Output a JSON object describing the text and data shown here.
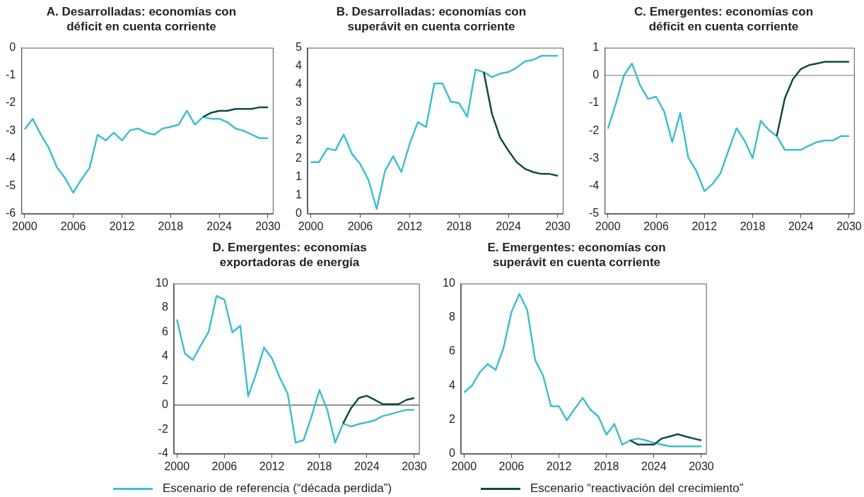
{
  "chart_data": [
    {
      "type": "line",
      "title": "A. Desarrolladas: economías con déficit en cuenta corriente",
      "x": [
        2000,
        2001,
        2002,
        2003,
        2004,
        2005,
        2006,
        2007,
        2008,
        2009,
        2010,
        2011,
        2012,
        2013,
        2014,
        2015,
        2016,
        2017,
        2018,
        2019,
        2020,
        2021,
        2022,
        2023,
        2024,
        2025,
        2026,
        2027,
        2028,
        2029,
        2030
      ],
      "xlim": [
        1999.6,
        2030.6
      ],
      "xticks": [
        2000,
        2006,
        2012,
        2018,
        2024,
        2030
      ],
      "ylim": [
        -6,
        0
      ],
      "yticks": [
        -6,
        -5,
        -4,
        -3,
        -2,
        -1,
        0
      ],
      "legend": "bottom",
      "grid": false,
      "series": [
        {
          "name": "Escenario de referencia (“década perdida”)",
          "color": "#3dbfcf",
          "values": [
            -2.95,
            -2.57,
            -3.14,
            -3.63,
            -4.33,
            -4.72,
            -5.24,
            -4.76,
            -4.35,
            -3.14,
            -3.35,
            -3.07,
            -3.35,
            -2.98,
            -2.92,
            -3.07,
            -3.14,
            -2.92,
            -2.86,
            -2.78,
            -2.28,
            -2.78,
            -2.5,
            -2.57,
            -2.57,
            -2.69,
            -2.92,
            -3.0,
            -3.14,
            -3.27,
            -3.27
          ]
        },
        {
          "name": "Escenario “reactivación del crecimiento”",
          "color": "#0f4a4a",
          "values": [
            null,
            null,
            null,
            null,
            null,
            null,
            null,
            null,
            null,
            null,
            null,
            null,
            null,
            null,
            null,
            null,
            null,
            null,
            null,
            null,
            null,
            null,
            -2.5,
            -2.35,
            -2.28,
            -2.28,
            -2.21,
            -2.21,
            -2.21,
            -2.15,
            -2.15
          ]
        }
      ]
    },
    {
      "type": "line",
      "title": "B. Desarrolladas: economías con superávit en cuenta corriente",
      "x": [
        2000,
        2001,
        2002,
        2003,
        2004,
        2005,
        2006,
        2007,
        2008,
        2009,
        2010,
        2011,
        2012,
        2013,
        2014,
        2015,
        2016,
        2017,
        2018,
        2019,
        2020,
        2021,
        2022,
        2023,
        2024,
        2025,
        2026,
        2027,
        2028,
        2029,
        2030
      ],
      "xlim": [
        1999.6,
        2030.6
      ],
      "xticks": [
        2000,
        2006,
        2012,
        2018,
        2024,
        2030
      ],
      "ylim": [
        0,
        4.5
      ],
      "yticks": [
        0,
        {
          "value": 0.5,
          "label": "1"
        },
        1,
        {
          "value": 1.5,
          "label": "2"
        },
        2,
        {
          "value": 2.5,
          "label": "3"
        },
        3,
        {
          "value": 3.5,
          "label": "4"
        },
        4,
        {
          "value": 4.5,
          "label": "5"
        }
      ],
      "grid": false,
      "series": [
        {
          "color": "#3dbfcf",
          "values": [
            1.4,
            1.4,
            1.77,
            1.72,
            2.15,
            1.62,
            1.35,
            0.92,
            0.13,
            1.15,
            1.56,
            1.13,
            1.89,
            2.48,
            2.35,
            3.53,
            3.53,
            3.04,
            3.0,
            2.63,
            3.91,
            3.84,
            3.7,
            3.8,
            3.84,
            3.96,
            4.13,
            4.17,
            4.28,
            4.28,
            4.28
          ]
        },
        {
          "color": "#0f4a4a",
          "values": [
            null,
            null,
            null,
            null,
            null,
            null,
            null,
            null,
            null,
            null,
            null,
            null,
            null,
            null,
            null,
            null,
            null,
            null,
            null,
            null,
            null,
            3.84,
            2.71,
            2.06,
            1.71,
            1.4,
            1.22,
            1.13,
            1.08,
            1.08,
            1.03
          ]
        }
      ]
    },
    {
      "type": "line",
      "title": "C. Emergentes: economías con déficit en cuenta corriente",
      "x": [
        2000,
        2001,
        2002,
        2003,
        2004,
        2005,
        2006,
        2007,
        2008,
        2009,
        2010,
        2011,
        2012,
        2013,
        2014,
        2015,
        2016,
        2017,
        2018,
        2019,
        2020,
        2021,
        2022,
        2023,
        2024,
        2025,
        2026,
        2027,
        2028,
        2029,
        2030
      ],
      "xlim": [
        1999.6,
        2030.6
      ],
      "xticks": [
        2000,
        2006,
        2012,
        2018,
        2024,
        2030
      ],
      "ylim": [
        -5,
        1
      ],
      "yticks": [
        -5,
        -4,
        -3,
        -2,
        -1,
        0,
        1
      ],
      "grid": false,
      "ref_lines": [
        {
          "axis": "y",
          "value": 0,
          "color": "#777777"
        }
      ],
      "series": [
        {
          "color": "#3dbfcf",
          "values": [
            -1.93,
            -1.01,
            0,
            0.43,
            -0.35,
            -0.85,
            -0.77,
            -1.31,
            -2.41,
            -1.36,
            -2.97,
            -3.45,
            -4.18,
            -3.93,
            -3.54,
            -2.71,
            -1.91,
            -2.36,
            -2.99,
            -1.64,
            -1.97,
            -2.19,
            -2.69,
            -2.69,
            -2.69,
            -2.54,
            -2.41,
            -2.35,
            -2.35,
            -2.19,
            -2.19
          ]
        },
        {
          "color": "#0f4a4a",
          "values": [
            null,
            null,
            null,
            null,
            null,
            null,
            null,
            null,
            null,
            null,
            null,
            null,
            null,
            null,
            null,
            null,
            null,
            null,
            null,
            null,
            null,
            -2.19,
            -0.83,
            -0.14,
            0.23,
            0.37,
            0.43,
            0.49,
            0.49,
            0.49,
            0.49
          ]
        }
      ]
    },
    {
      "type": "line",
      "title": "D. Emergentes: economías exportadoras de energía",
      "x": [
        2000,
        2001,
        2002,
        2003,
        2004,
        2005,
        2006,
        2007,
        2008,
        2009,
        2010,
        2011,
        2012,
        2013,
        2014,
        2015,
        2016,
        2017,
        2018,
        2019,
        2020,
        2021,
        2022,
        2023,
        2024,
        2025,
        2026,
        2027,
        2028,
        2029,
        2030
      ],
      "xlim": [
        1999.6,
        2030.6
      ],
      "xticks": [
        2000,
        2006,
        2012,
        2018,
        2024,
        2030
      ],
      "ylim": [
        -4,
        10
      ],
      "yticks": [
        -4,
        -2,
        0,
        2,
        4,
        6,
        8,
        10
      ],
      "grid": false,
      "ref_lines": [
        {
          "axis": "y",
          "value": 0,
          "color": "#222222"
        }
      ],
      "series": [
        {
          "color": "#3dbfcf",
          "values": [
            7.04,
            4.25,
            3.72,
            4.9,
            6.02,
            8.98,
            8.67,
            5.99,
            6.53,
            0.73,
            2.56,
            4.74,
            3.85,
            2.26,
            0.93,
            -3.08,
            -2.88,
            -0.96,
            1.24,
            -0.39,
            -3.08,
            -1.51,
            -1.76,
            -1.55,
            -1.41,
            -1.25,
            -0.9,
            -0.74,
            -0.55,
            -0.39,
            -0.39
          ]
        },
        {
          "color": "#0f4a4a",
          "values": [
            null,
            null,
            null,
            null,
            null,
            null,
            null,
            null,
            null,
            null,
            null,
            null,
            null,
            null,
            null,
            null,
            null,
            null,
            null,
            null,
            null,
            -1.51,
            -0.25,
            0.59,
            0.77,
            0.43,
            0.08,
            0.08,
            0.08,
            0.43,
            0.59
          ]
        }
      ]
    },
    {
      "type": "line",
      "title": "E. Emergentes: economías con superávit en cuenta corriente",
      "x": [
        2000,
        2001,
        2002,
        2003,
        2004,
        2005,
        2006,
        2007,
        2008,
        2009,
        2010,
        2011,
        2012,
        2013,
        2014,
        2015,
        2016,
        2017,
        2018,
        2019,
        2020,
        2021,
        2022,
        2023,
        2024,
        2025,
        2026,
        2027,
        2028,
        2029,
        2030
      ],
      "xlim": [
        1999.6,
        2030.6
      ],
      "xticks": [
        2000,
        2006,
        2012,
        2018,
        2024,
        2030
      ],
      "ylim": [
        0,
        10
      ],
      "yticks": [
        0,
        2,
        4,
        6,
        8,
        10
      ],
      "grid": false,
      "series": [
        {
          "color": "#3dbfcf",
          "values": [
            3.6,
            4.0,
            4.79,
            5.27,
            4.93,
            6.22,
            8.33,
            9.39,
            8.43,
            5.49,
            4.59,
            2.79,
            2.79,
            1.97,
            2.65,
            3.28,
            2.58,
            2.18,
            1.12,
            1.75,
            0.54,
            0.79,
            0.9,
            0.79,
            0.64,
            0.54,
            0.44,
            0.44,
            0.44,
            0.44,
            0.44
          ]
        },
        {
          "color": "#0f4a4a",
          "values": [
            null,
            null,
            null,
            null,
            null,
            null,
            null,
            null,
            null,
            null,
            null,
            null,
            null,
            null,
            null,
            null,
            null,
            null,
            null,
            null,
            null,
            0.79,
            0.54,
            0.54,
            0.54,
            0.9,
            1.02,
            1.15,
            1.02,
            0.9,
            0.79
          ]
        }
      ]
    }
  ]
}
